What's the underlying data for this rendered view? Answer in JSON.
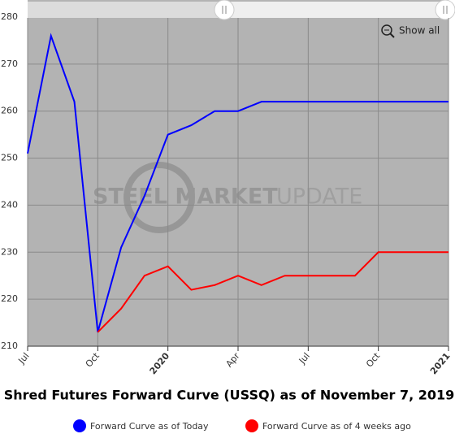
{
  "chart_data": {
    "type": "line",
    "title": "Shred Futures Forward Curve (USSQ) as of November 7, 2019",
    "watermark": [
      "STEEL MARKET",
      "UPDATE"
    ],
    "button": "Show all",
    "categories": [
      "Jul",
      null,
      null,
      "Oct",
      null,
      null,
      "2020",
      null,
      null,
      "Apr",
      null,
      null,
      "Jul",
      null,
      null,
      "Oct",
      null,
      null,
      "2021"
    ],
    "series": [
      {
        "name": "Forward Curve as of Today",
        "color": "#0000ff",
        "values": [
          251,
          276,
          262,
          213,
          231,
          242,
          255,
          257,
          260,
          260,
          262,
          262,
          262,
          262,
          262,
          262,
          262,
          262,
          262
        ]
      },
      {
        "name": "Forward Curve as of 4 weeks ago",
        "color": "#ff0000",
        "values": [
          null,
          null,
          null,
          213,
          218,
          225,
          227,
          222,
          223,
          225,
          223,
          225,
          225,
          225,
          225,
          230,
          230,
          230,
          230
        ]
      }
    ],
    "ylim": [
      210,
      280
    ],
    "yticks": [
      210,
      220,
      230,
      240,
      250,
      260,
      270,
      280
    ],
    "grid": true
  }
}
